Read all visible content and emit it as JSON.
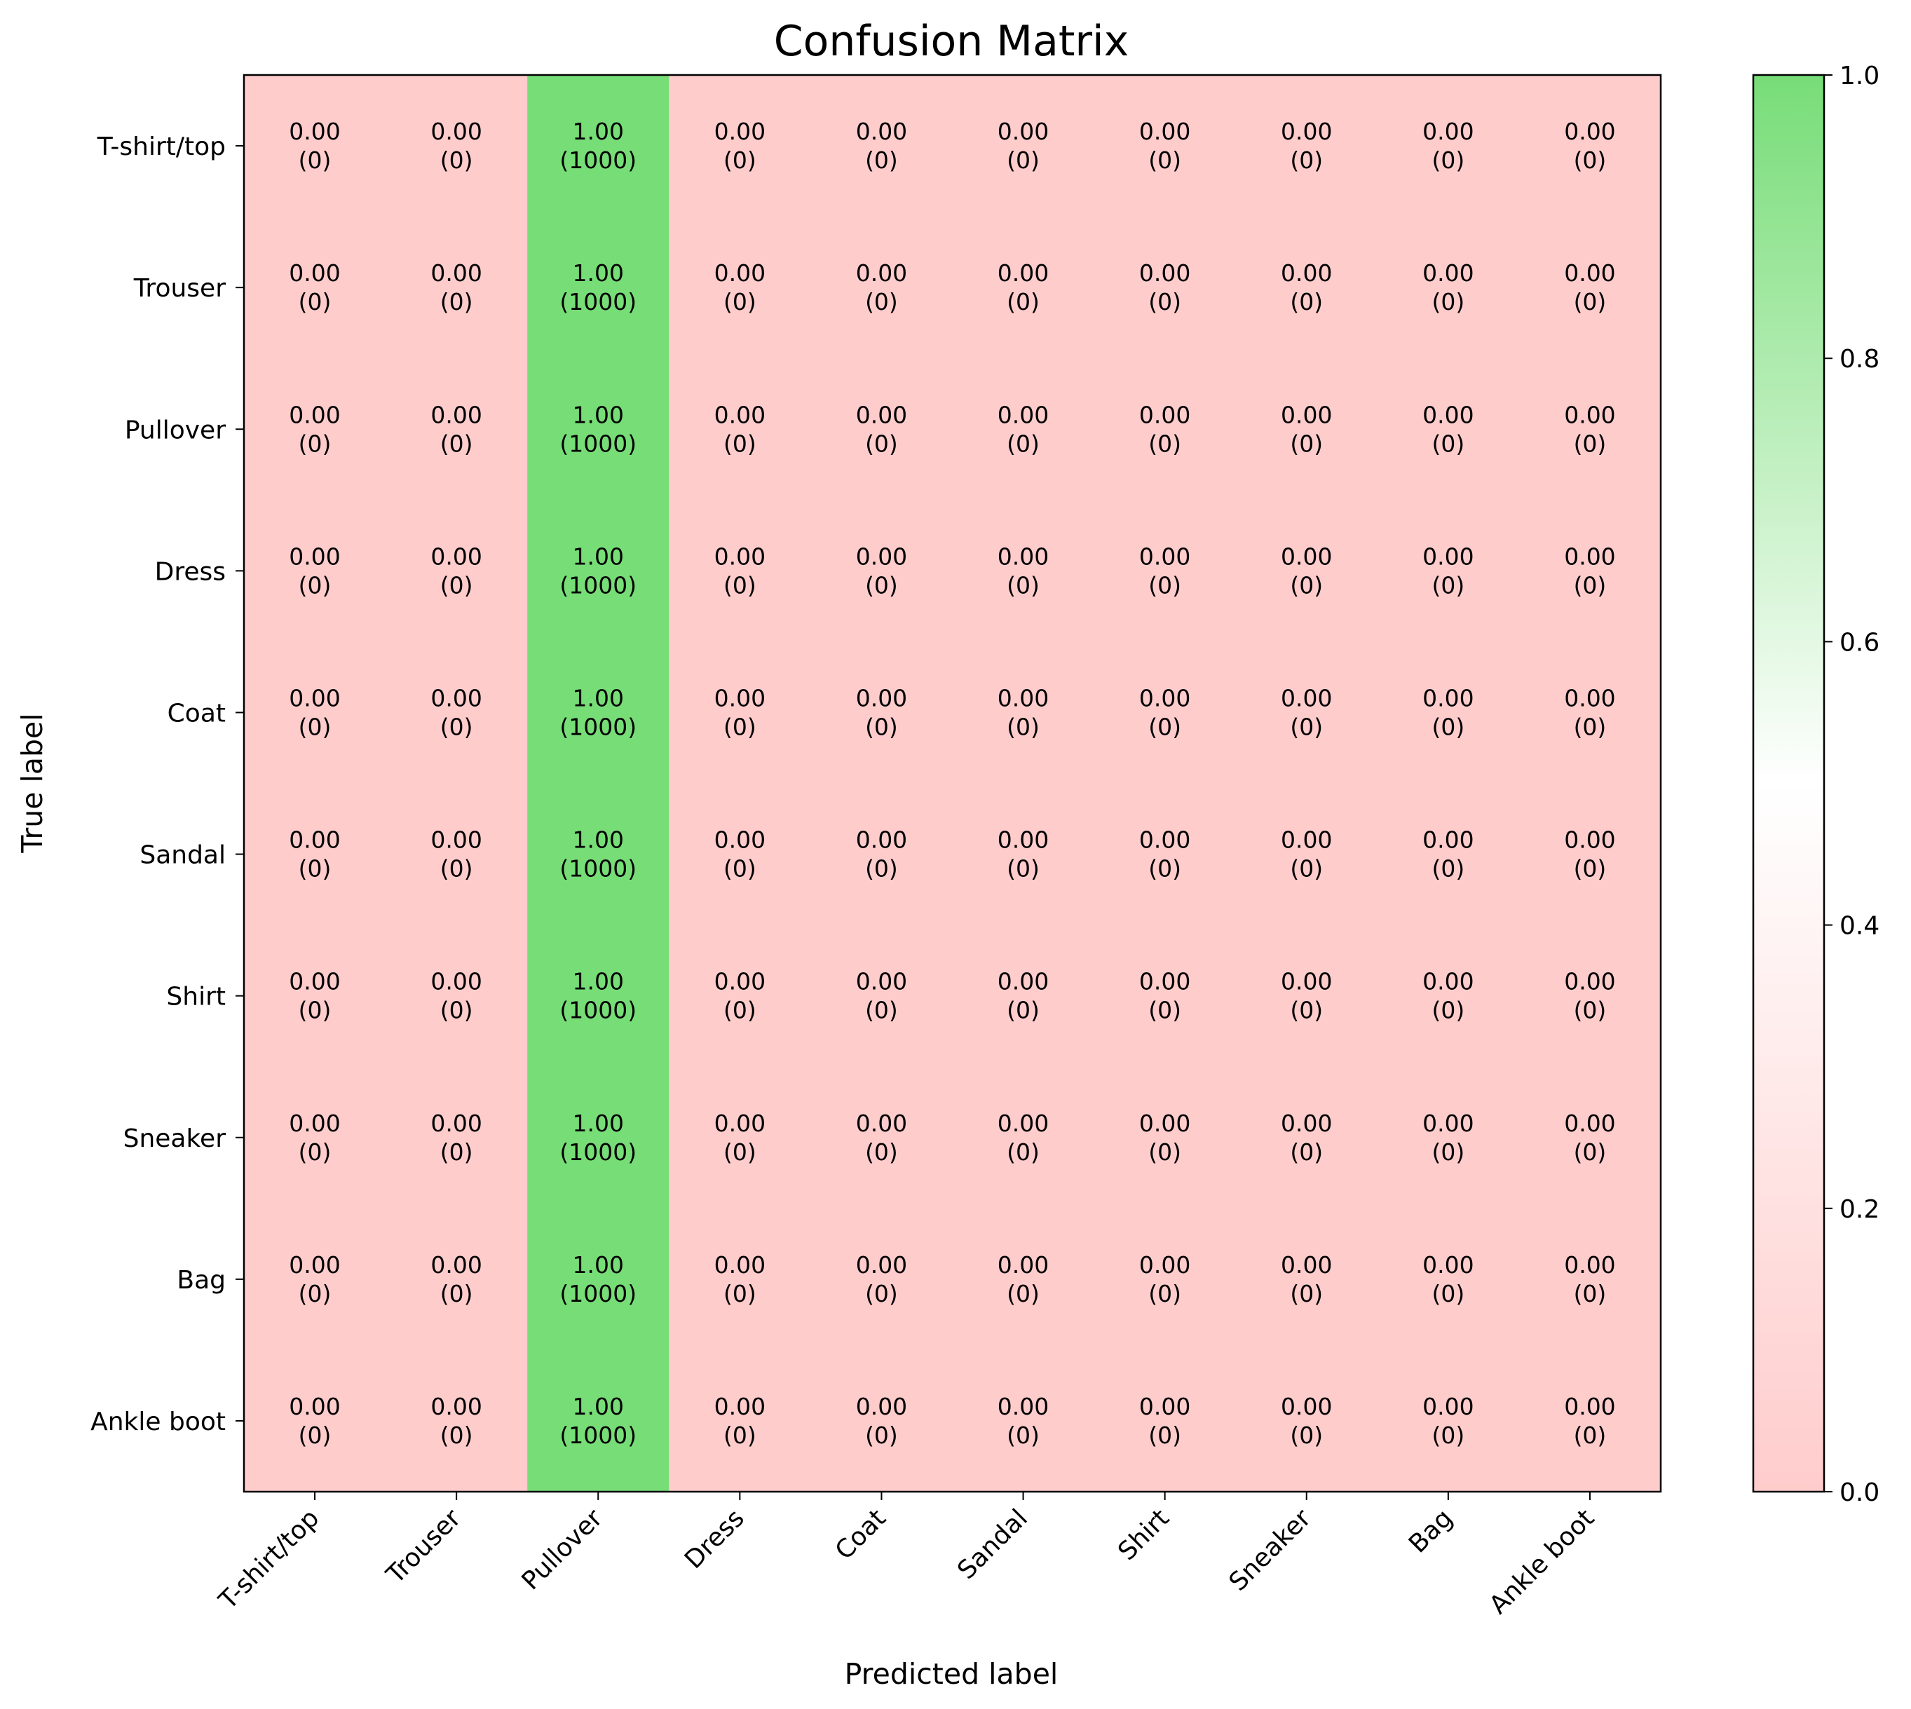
{
  "chart_data": {
    "type": "heatmap",
    "title": "Confusion Matrix",
    "xlabel": "Predicted label",
    "ylabel": "True label",
    "x_categories": [
      "T-shirt/top",
      "Trouser",
      "Pullover",
      "Dress",
      "Coat",
      "Sandal",
      "Shirt",
      "Sneaker",
      "Bag",
      "Ankle boot"
    ],
    "y_categories": [
      "T-shirt/top",
      "Trouser",
      "Pullover",
      "Dress",
      "Coat",
      "Sandal",
      "Shirt",
      "Sneaker",
      "Bag",
      "Ankle boot"
    ],
    "normalized": [
      [
        0,
        0,
        1,
        0,
        0,
        0,
        0,
        0,
        0,
        0
      ],
      [
        0,
        0,
        1,
        0,
        0,
        0,
        0,
        0,
        0,
        0
      ],
      [
        0,
        0,
        1,
        0,
        0,
        0,
        0,
        0,
        0,
        0
      ],
      [
        0,
        0,
        1,
        0,
        0,
        0,
        0,
        0,
        0,
        0
      ],
      [
        0,
        0,
        1,
        0,
        0,
        0,
        0,
        0,
        0,
        0
      ],
      [
        0,
        0,
        1,
        0,
        0,
        0,
        0,
        0,
        0,
        0
      ],
      [
        0,
        0,
        1,
        0,
        0,
        0,
        0,
        0,
        0,
        0
      ],
      [
        0,
        0,
        1,
        0,
        0,
        0,
        0,
        0,
        0,
        0
      ],
      [
        0,
        0,
        1,
        0,
        0,
        0,
        0,
        0,
        0,
        0
      ],
      [
        0,
        0,
        1,
        0,
        0,
        0,
        0,
        0,
        0,
        0
      ]
    ],
    "counts": [
      [
        0,
        0,
        1000,
        0,
        0,
        0,
        0,
        0,
        0,
        0
      ],
      [
        0,
        0,
        1000,
        0,
        0,
        0,
        0,
        0,
        0,
        0
      ],
      [
        0,
        0,
        1000,
        0,
        0,
        0,
        0,
        0,
        0,
        0
      ],
      [
        0,
        0,
        1000,
        0,
        0,
        0,
        0,
        0,
        0,
        0
      ],
      [
        0,
        0,
        1000,
        0,
        0,
        0,
        0,
        0,
        0,
        0
      ],
      [
        0,
        0,
        1000,
        0,
        0,
        0,
        0,
        0,
        0,
        0
      ],
      [
        0,
        0,
        1000,
        0,
        0,
        0,
        0,
        0,
        0,
        0
      ],
      [
        0,
        0,
        1000,
        0,
        0,
        0,
        0,
        0,
        0,
        0
      ],
      [
        0,
        0,
        1000,
        0,
        0,
        0,
        0,
        0,
        0,
        0
      ],
      [
        0,
        0,
        1000,
        0,
        0,
        0,
        0,
        0,
        0,
        0
      ]
    ],
    "colorbar": {
      "range": [
        0.0,
        1.0
      ],
      "ticks": [
        0.0,
        0.2,
        0.4,
        0.6,
        0.8,
        1.0
      ],
      "tick_labels": [
        "0.0",
        "0.2",
        "0.4",
        "0.6",
        "0.8",
        "1.0"
      ],
      "colors": [
        "#ffcccc",
        "#ffffff",
        "#77dd77"
      ]
    },
    "legend": "none",
    "grid": false
  }
}
